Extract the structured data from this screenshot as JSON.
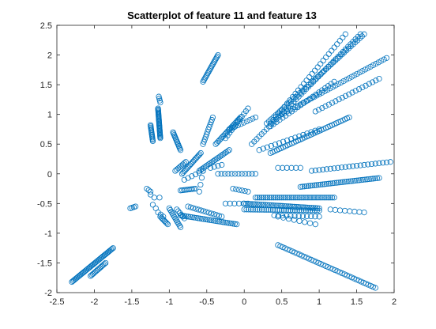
{
  "chart_data": {
    "type": "scatter",
    "title": "Scatterplot of feature 11 and feature 13",
    "xlabel": "",
    "ylabel": "",
    "xlim": [
      -2.5,
      2
    ],
    "ylim": [
      -2,
      2.5
    ],
    "xticks": [
      -2.5,
      -2,
      -1.5,
      -1,
      -0.5,
      0,
      0.5,
      1,
      1.5,
      2
    ],
    "xtick_labels": [
      "-2.5",
      "-2",
      "-1.5",
      "-1",
      "-0.5",
      "0",
      "0.5",
      "1",
      "1.5",
      "2"
    ],
    "yticks": [
      -2,
      -1.5,
      -1,
      -0.5,
      0,
      0.5,
      1,
      1.5,
      2,
      2.5
    ],
    "ytick_labels": [
      "-2",
      "-1.5",
      "-1",
      "-0.5",
      "0",
      "0.5",
      "1",
      "1.5",
      "2",
      "2.5"
    ],
    "grid": false,
    "legend": false,
    "marker": "circle",
    "marker_color": "#0072BD",
    "clusters": [
      {
        "from": [
          -2.3,
          -1.82
        ],
        "to": [
          -1.75,
          -1.25
        ],
        "n": 40
      },
      {
        "from": [
          -2.05,
          -1.72
        ],
        "to": [
          -1.85,
          -1.5
        ],
        "n": 14
      },
      {
        "from": [
          -1.52,
          -0.58
        ],
        "to": [
          -1.45,
          -0.55
        ],
        "n": 4
      },
      {
        "from": [
          -1.3,
          -0.25
        ],
        "to": [
          -1.25,
          -0.3
        ],
        "n": 3
      },
      {
        "from": [
          -1.13,
          -0.4
        ],
        "to": [
          -1.1,
          -0.42
        ],
        "n": 1
      },
      {
        "from": [
          -1.25,
          -0.35
        ],
        "to": [
          -1.2,
          -0.4
        ],
        "n": 2
      },
      {
        "from": [
          -1.12,
          -0.72
        ],
        "to": [
          -1.02,
          -0.85
        ],
        "n": 8
      },
      {
        "from": [
          -1.15,
          -0.65
        ],
        "to": [
          -1.08,
          -0.72
        ],
        "n": 3
      },
      {
        "from": [
          -1.22,
          -0.52
        ],
        "to": [
          -1.18,
          -0.58
        ],
        "n": 2
      },
      {
        "from": [
          -1.0,
          -0.58
        ],
        "to": [
          -0.85,
          -0.9
        ],
        "n": 12
      },
      {
        "from": [
          -0.9,
          -0.6
        ],
        "to": [
          -0.8,
          -0.75
        ],
        "n": 6
      },
      {
        "from": [
          -1.25,
          0.82
        ],
        "to": [
          -1.22,
          0.55
        ],
        "n": 14
      },
      {
        "from": [
          -1.15,
          1.1
        ],
        "to": [
          -1.12,
          0.6
        ],
        "n": 30
      },
      {
        "from": [
          -1.14,
          1.3
        ],
        "to": [
          -1.12,
          1.2
        ],
        "n": 4
      },
      {
        "from": [
          -0.95,
          0.7
        ],
        "to": [
          -0.85,
          0.4
        ],
        "n": 14
      },
      {
        "from": [
          -0.83,
          0.0
        ],
        "to": [
          -0.58,
          0.35
        ],
        "n": 18
      },
      {
        "from": [
          -0.92,
          0.05
        ],
        "to": [
          -0.78,
          0.2
        ],
        "n": 8
      },
      {
        "from": [
          -0.85,
          -0.28
        ],
        "to": [
          -0.65,
          -0.25
        ],
        "n": 10
      },
      {
        "from": [
          -0.8,
          -0.1
        ],
        "to": [
          -0.55,
          0.05
        ],
        "n": 6
      },
      {
        "from": [
          -0.6,
          0.05
        ],
        "to": [
          -0.2,
          0.4
        ],
        "n": 20
      },
      {
        "from": [
          -0.45,
          0.1
        ],
        "to": [
          -0.3,
          0.15
        ],
        "n": 4
      },
      {
        "from": [
          -0.55,
          0.5
        ],
        "to": [
          -0.42,
          0.95
        ],
        "n": 12
      },
      {
        "from": [
          -0.38,
          0.5
        ],
        "to": [
          -0.05,
          0.95
        ],
        "n": 20
      },
      {
        "from": [
          -0.25,
          0.6
        ],
        "to": [
          0.05,
          1.1
        ],
        "n": 12
      },
      {
        "from": [
          -0.55,
          1.55
        ],
        "to": [
          -0.35,
          2.0
        ],
        "n": 20
      },
      {
        "from": [
          -0.2,
          0.75
        ],
        "to": [
          0.15,
          0.95
        ],
        "n": 10
      },
      {
        "from": [
          0.1,
          0.5
        ],
        "to": [
          1.55,
          2.35
        ],
        "n": 45
      },
      {
        "from": [
          0.3,
          0.85
        ],
        "to": [
          1.6,
          2.35
        ],
        "n": 45
      },
      {
        "from": [
          0.35,
          0.85
        ],
        "to": [
          1.35,
          2.35
        ],
        "n": 28
      },
      {
        "from": [
          0.35,
          0.8
        ],
        "to": [
          1.2,
          1.55
        ],
        "n": 22
      },
      {
        "from": [
          0.5,
          1.0
        ],
        "to": [
          1.9,
          1.95
        ],
        "n": 40
      },
      {
        "from": [
          0.95,
          1.05
        ],
        "to": [
          1.8,
          1.6
        ],
        "n": 20
      },
      {
        "from": [
          0.35,
          0.35
        ],
        "to": [
          1.4,
          0.95
        ],
        "n": 38
      },
      {
        "from": [
          0.2,
          0.4
        ],
        "to": [
          1.0,
          0.75
        ],
        "n": 16
      },
      {
        "from": [
          -0.6,
          -0.3
        ],
        "to": [
          -0.55,
          0.05
        ],
        "n": 4
      },
      {
        "from": [
          -0.35,
          0.0
        ],
        "to": [
          0.15,
          0.0
        ],
        "n": 12
      },
      {
        "from": [
          -0.15,
          -0.25
        ],
        "to": [
          0.05,
          -0.3
        ],
        "n": 6
      },
      {
        "from": [
          0.15,
          -0.4
        ],
        "to": [
          1.2,
          -0.4
        ],
        "n": 40
      },
      {
        "from": [
          0.45,
          0.1
        ],
        "to": [
          0.75,
          0.1
        ],
        "n": 6
      },
      {
        "from": [
          0.9,
          0.05
        ],
        "to": [
          1.95,
          0.2
        ],
        "n": 22
      },
      {
        "from": [
          0.75,
          -0.22
        ],
        "to": [
          1.8,
          -0.07
        ],
        "n": 40
      },
      {
        "from": [
          0.0,
          -0.5
        ],
        "to": [
          1.0,
          -0.58
        ],
        "n": 40
      },
      {
        "from": [
          0.0,
          -0.6
        ],
        "to": [
          1.0,
          -0.62
        ],
        "n": 35
      },
      {
        "from": [
          0.4,
          -0.7
        ],
        "to": [
          1.0,
          -0.72
        ],
        "n": 12
      },
      {
        "from": [
          1.15,
          -0.6
        ],
        "to": [
          1.6,
          -0.65
        ],
        "n": 8
      },
      {
        "from": [
          -0.25,
          -0.5
        ],
        "to": [
          0.05,
          -0.5
        ],
        "n": 6
      },
      {
        "from": [
          -0.85,
          -0.7
        ],
        "to": [
          -0.1,
          -0.85
        ],
        "n": 30
      },
      {
        "from": [
          -0.75,
          -0.55
        ],
        "to": [
          -0.3,
          -0.72
        ],
        "n": 14
      },
      {
        "from": [
          0.45,
          -0.72
        ],
        "to": [
          0.95,
          -0.85
        ],
        "n": 8
      },
      {
        "from": [
          0.45,
          -1.2
        ],
        "to": [
          1.75,
          -1.92
        ],
        "n": 42
      }
    ]
  }
}
